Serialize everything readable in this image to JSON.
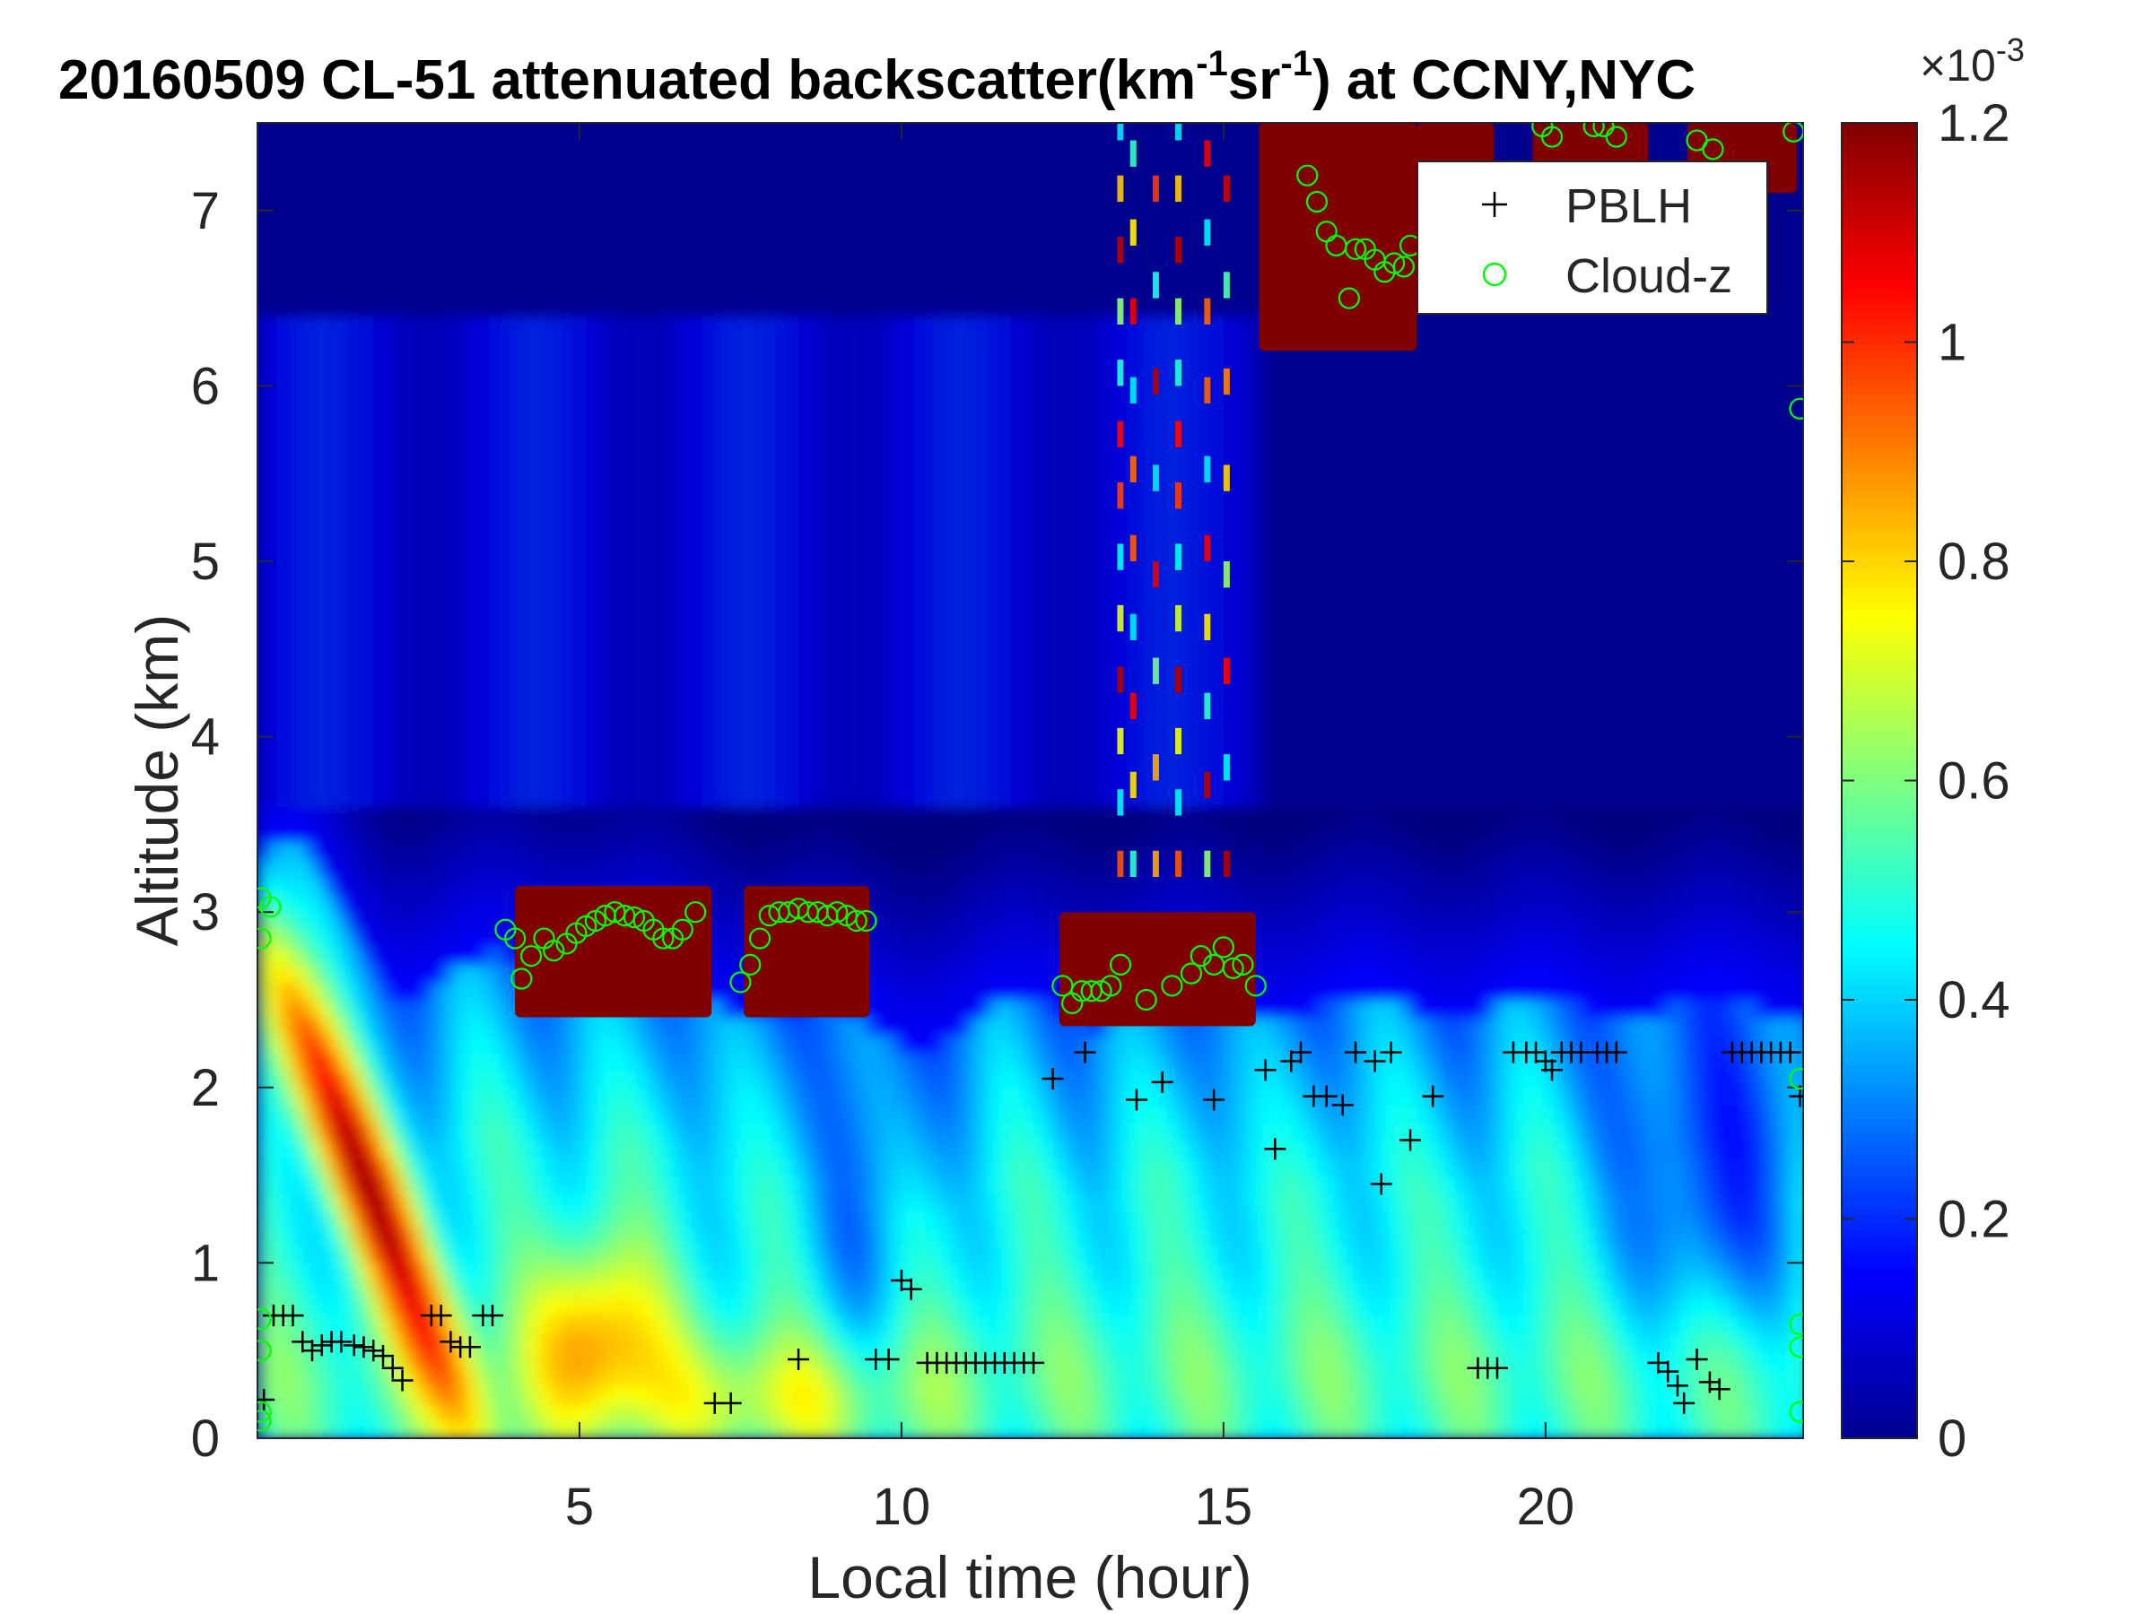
{
  "chart_data": {
    "type": "heatmap",
    "title": {
      "prefix": "20160509  CL-51 attenuated backscatter(km",
      "sup1": "-1",
      "mid": "sr",
      "sup2": "-1",
      "suffix": ") at CCNY,NYC"
    },
    "xlabel": "Local time (hour)",
    "ylabel": "Altitude (km)",
    "xlim": [
      0,
      24
    ],
    "ylim": [
      0,
      7.5
    ],
    "xticks": [
      "5",
      "10",
      "15",
      "20"
    ],
    "xtick_values": [
      5,
      10,
      15,
      20
    ],
    "yticks": [
      "0",
      "1",
      "2",
      "3",
      "4",
      "5",
      "6",
      "7"
    ],
    "ytick_values": [
      0,
      1,
      2,
      3,
      4,
      5,
      6,
      7
    ],
    "colorbar": {
      "label_exponent": "×10",
      "exponent_power": "-3",
      "range": [
        0,
        1.2
      ],
      "ticks": [
        "0",
        "0.2",
        "0.4",
        "0.6",
        "0.8",
        "1",
        "1.2"
      ],
      "tick_values": [
        0,
        0.2,
        0.4,
        0.6,
        0.8,
        1.0,
        1.2
      ],
      "colormap": "jet"
    },
    "legend": {
      "placement": "top-right",
      "entries": [
        {
          "label": "PBLH",
          "marker": "+",
          "color": "#000000"
        },
        {
          "label": "Cloud-z",
          "marker": "o",
          "color": "#00ff00"
        }
      ]
    },
    "pblh": {
      "name": "PBLH",
      "points": [
        [
          0.1,
          0.22
        ],
        [
          0.25,
          0.7
        ],
        [
          0.4,
          0.7
        ],
        [
          0.55,
          0.7
        ],
        [
          0.7,
          0.55
        ],
        [
          0.85,
          0.5
        ],
        [
          1.0,
          0.53
        ],
        [
          1.15,
          0.55
        ],
        [
          1.3,
          0.55
        ],
        [
          1.5,
          0.53
        ],
        [
          1.65,
          0.52
        ],
        [
          1.8,
          0.5
        ],
        [
          1.95,
          0.47
        ],
        [
          2.1,
          0.4
        ],
        [
          2.25,
          0.33
        ],
        [
          2.7,
          0.7
        ],
        [
          2.85,
          0.7
        ],
        [
          3.0,
          0.55
        ],
        [
          3.15,
          0.52
        ],
        [
          3.3,
          0.52
        ],
        [
          3.5,
          0.7
        ],
        [
          3.65,
          0.7
        ],
        [
          7.1,
          0.2
        ],
        [
          7.35,
          0.2
        ],
        [
          8.4,
          0.45
        ],
        [
          9.6,
          0.45
        ],
        [
          9.8,
          0.45
        ],
        [
          10.0,
          0.9
        ],
        [
          10.15,
          0.85
        ],
        [
          10.4,
          0.43
        ],
        [
          10.55,
          0.43
        ],
        [
          10.7,
          0.43
        ],
        [
          10.85,
          0.43
        ],
        [
          11.0,
          0.43
        ],
        [
          11.15,
          0.43
        ],
        [
          11.3,
          0.43
        ],
        [
          11.45,
          0.43
        ],
        [
          11.6,
          0.43
        ],
        [
          11.75,
          0.43
        ],
        [
          11.9,
          0.43
        ],
        [
          12.05,
          0.43
        ],
        [
          12.35,
          2.05
        ],
        [
          12.85,
          2.2
        ],
        [
          13.65,
          1.93
        ],
        [
          14.05,
          2.03
        ],
        [
          14.85,
          1.93
        ],
        [
          15.65,
          2.1
        ],
        [
          15.8,
          1.65
        ],
        [
          16.05,
          2.15
        ],
        [
          16.2,
          2.2
        ],
        [
          16.4,
          1.95
        ],
        [
          16.6,
          1.95
        ],
        [
          16.85,
          1.9
        ],
        [
          17.05,
          2.2
        ],
        [
          17.35,
          2.15
        ],
        [
          17.45,
          1.45
        ],
        [
          17.6,
          2.2
        ],
        [
          17.9,
          1.7
        ],
        [
          18.25,
          1.95
        ],
        [
          18.95,
          0.4
        ],
        [
          19.1,
          0.4
        ],
        [
          19.25,
          0.4
        ],
        [
          19.5,
          2.2
        ],
        [
          19.7,
          2.2
        ],
        [
          19.85,
          2.2
        ],
        [
          20.0,
          2.15
        ],
        [
          20.1,
          2.1
        ],
        [
          20.25,
          2.2
        ],
        [
          20.4,
          2.2
        ],
        [
          20.55,
          2.2
        ],
        [
          20.8,
          2.2
        ],
        [
          20.95,
          2.2
        ],
        [
          21.1,
          2.2
        ],
        [
          21.75,
          0.43
        ],
        [
          21.9,
          0.38
        ],
        [
          22.05,
          0.3
        ],
        [
          22.15,
          0.2
        ],
        [
          22.35,
          0.45
        ],
        [
          22.55,
          0.32
        ],
        [
          22.7,
          0.28
        ],
        [
          22.9,
          2.2
        ],
        [
          23.05,
          2.2
        ],
        [
          23.2,
          2.2
        ],
        [
          23.35,
          2.2
        ],
        [
          23.5,
          2.2
        ],
        [
          23.65,
          2.2
        ],
        [
          23.8,
          2.2
        ],
        [
          23.95,
          1.95
        ]
      ]
    },
    "cloud_z": {
      "name": "Cloud-z",
      "points": [
        [
          0.05,
          3.08
        ],
        [
          0.05,
          2.85
        ],
        [
          0.05,
          0.68
        ],
        [
          0.05,
          0.5
        ],
        [
          0.05,
          0.15
        ],
        [
          0.05,
          0.1
        ],
        [
          0.2,
          3.03
        ],
        [
          3.85,
          2.9
        ],
        [
          4.0,
          2.85
        ],
        [
          4.1,
          2.62
        ],
        [
          4.25,
          2.75
        ],
        [
          4.45,
          2.85
        ],
        [
          4.6,
          2.78
        ],
        [
          4.8,
          2.82
        ],
        [
          4.95,
          2.88
        ],
        [
          5.1,
          2.92
        ],
        [
          5.25,
          2.95
        ],
        [
          5.4,
          2.98
        ],
        [
          5.55,
          3.0
        ],
        [
          5.7,
          2.98
        ],
        [
          5.85,
          2.97
        ],
        [
          6.0,
          2.95
        ],
        [
          6.15,
          2.9
        ],
        [
          6.3,
          2.85
        ],
        [
          6.45,
          2.85
        ],
        [
          6.6,
          2.9
        ],
        [
          6.8,
          3.0
        ],
        [
          7.5,
          2.6
        ],
        [
          7.65,
          2.7
        ],
        [
          7.8,
          2.85
        ],
        [
          7.95,
          2.98
        ],
        [
          8.1,
          3.0
        ],
        [
          8.25,
          3.0
        ],
        [
          8.4,
          3.02
        ],
        [
          8.55,
          3.0
        ],
        [
          8.7,
          3.0
        ],
        [
          8.85,
          2.98
        ],
        [
          9.0,
          3.0
        ],
        [
          9.15,
          2.98
        ],
        [
          9.3,
          2.95
        ],
        [
          9.45,
          2.95
        ],
        [
          12.5,
          2.58
        ],
        [
          12.65,
          2.48
        ],
        [
          12.8,
          2.55
        ],
        [
          12.95,
          2.55
        ],
        [
          13.1,
          2.55
        ],
        [
          13.25,
          2.58
        ],
        [
          13.4,
          2.7
        ],
        [
          13.8,
          2.5
        ],
        [
          14.2,
          2.58
        ],
        [
          14.5,
          2.65
        ],
        [
          14.65,
          2.75
        ],
        [
          14.85,
          2.7
        ],
        [
          15.0,
          2.8
        ],
        [
          15.15,
          2.68
        ],
        [
          15.3,
          2.7
        ],
        [
          15.5,
          2.58
        ],
        [
          16.3,
          7.2
        ],
        [
          16.45,
          7.05
        ],
        [
          16.6,
          6.88
        ],
        [
          16.75,
          6.8
        ],
        [
          16.95,
          6.5
        ],
        [
          17.05,
          6.78
        ],
        [
          17.2,
          6.78
        ],
        [
          17.35,
          6.72
        ],
        [
          17.5,
          6.65
        ],
        [
          17.65,
          6.7
        ],
        [
          17.8,
          6.68
        ],
        [
          17.9,
          6.8
        ],
        [
          19.95,
          7.48
        ],
        [
          20.1,
          7.42
        ],
        [
          20.75,
          7.48
        ],
        [
          20.9,
          7.48
        ],
        [
          21.1,
          7.42
        ],
        [
          22.35,
          7.4
        ],
        [
          22.6,
          7.35
        ],
        [
          23.85,
          7.45
        ],
        [
          23.95,
          5.87
        ],
        [
          23.95,
          2.05
        ],
        [
          23.95,
          0.65
        ],
        [
          23.95,
          0.52
        ],
        [
          23.95,
          0.15
        ]
      ]
    },
    "field_features": {
      "clouds_saturated": [
        {
          "x0": 4.0,
          "x1": 7.05,
          "y0": 2.4,
          "y1": 3.15
        },
        {
          "x0": 7.55,
          "x1": 9.5,
          "y0": 2.4,
          "y1": 3.15
        },
        {
          "x0": 12.45,
          "x1": 15.5,
          "y0": 2.35,
          "y1": 3.0
        },
        {
          "x0": 15.55,
          "x1": 18.0,
          "y0": 6.2,
          "y1": 7.5
        },
        {
          "x0": 18.0,
          "x1": 19.2,
          "y0": 7.1,
          "y1": 7.5
        },
        {
          "x0": 19.8,
          "x1": 21.6,
          "y0": 7.15,
          "y1": 7.5
        },
        {
          "x0": 22.2,
          "x1": 23.9,
          "y0": 7.1,
          "y1": 7.5
        }
      ],
      "aerosol_layer_top_km": 2.4
    }
  }
}
